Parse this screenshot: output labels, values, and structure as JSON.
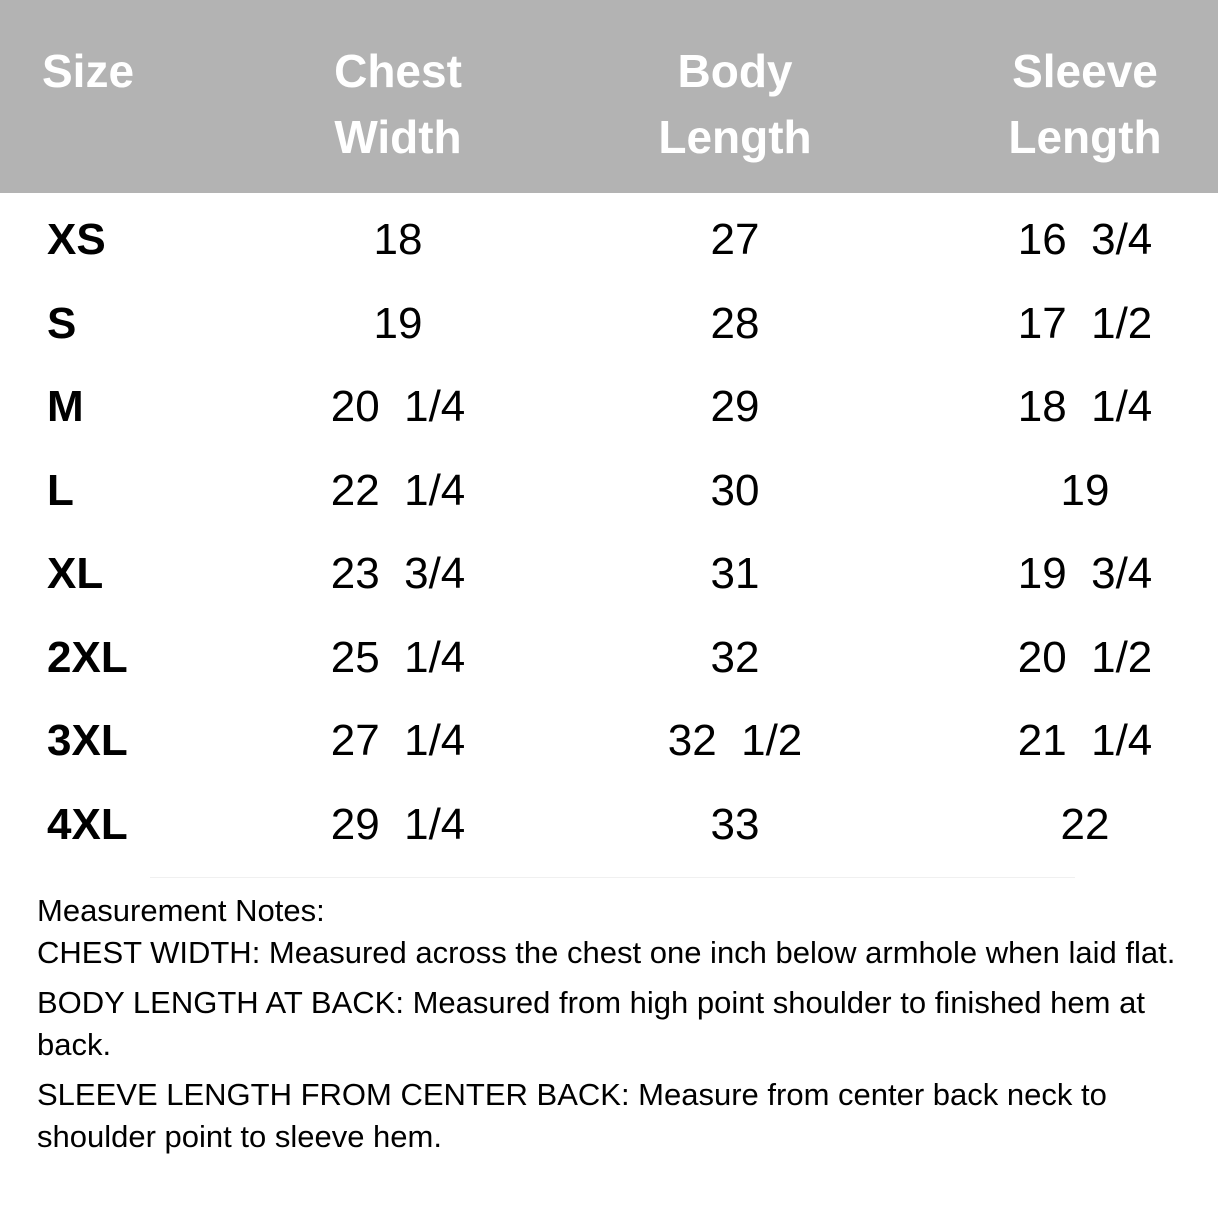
{
  "headers": [
    "Size",
    "Chest\nWidth",
    "Body\nLength",
    "Sleeve\nLength"
  ],
  "rows": [
    {
      "size": "XS",
      "chest": "18",
      "body": "27",
      "sleeve": "16  3/4"
    },
    {
      "size": "S",
      "chest": "19",
      "body": "28",
      "sleeve": "17  1/2"
    },
    {
      "size": "M",
      "chest": "20  1/4",
      "body": "29",
      "sleeve": "18  1/4"
    },
    {
      "size": "L",
      "chest": "22  1/4",
      "body": "30",
      "sleeve": "19"
    },
    {
      "size": "XL",
      "chest": "23  3/4",
      "body": "31",
      "sleeve": "19  3/4"
    },
    {
      "size": "2XL",
      "chest": "25  1/4",
      "body": "32",
      "sleeve": "20  1/2"
    },
    {
      "size": "3XL",
      "chest": "27  1/4",
      "body": "32  1/2",
      "sleeve": "21  1/4"
    },
    {
      "size": "4XL",
      "chest": "29  1/4",
      "body": "33",
      "sleeve": "22"
    }
  ],
  "notes": {
    "title": "Measurement Notes:",
    "items": [
      {
        "label": "CHEST WIDTH:",
        "text": " Measured across the chest one inch below armhole when laid flat."
      },
      {
        "label": "BODY LENGTH AT BACK:",
        "text": " Measured from high point shoulder to finished hem at back."
      },
      {
        "label": "SLEEVE LENGTH FROM CENTER BACK:",
        "text": " Measure from center back neck to shoulder point to sleeve hem."
      }
    ]
  },
  "colors": {
    "header_bg": "#b3b3b3",
    "header_text": "#ffffff"
  }
}
